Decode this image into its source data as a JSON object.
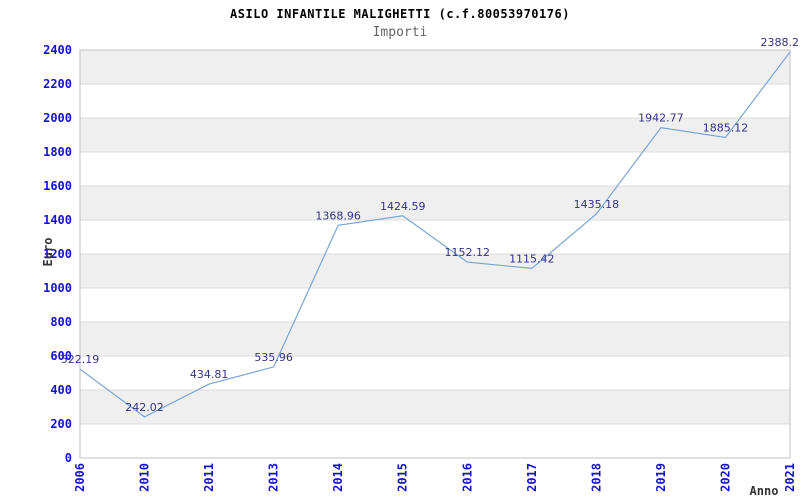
{
  "chart_data": {
    "type": "line",
    "title": "ASILO INFANTILE MALIGHETTI (c.f.80053970176)",
    "subtitle": "Importi",
    "xlabel": "Anno",
    "ylabel": "Euro",
    "categories": [
      "2006",
      "2010",
      "2011",
      "2013",
      "2014",
      "2015",
      "2016",
      "2017",
      "2018",
      "2019",
      "2020",
      "2021"
    ],
    "values": [
      522.19,
      242.02,
      434.81,
      535.96,
      1368.96,
      1424.59,
      1152.12,
      1115.42,
      1435.18,
      1942.77,
      1885.12,
      2388.2
    ],
    "point_labels": [
      "522.19",
      "242.02",
      "434.81",
      "535.96",
      "1368.96",
      "1424.59",
      "1152.12",
      "1115.42",
      "1435.18",
      "1942.77",
      "1885.12",
      "2388.2"
    ],
    "ylim": [
      0,
      2400
    ],
    "ytick_step": 200,
    "grid": "horizontal-bands",
    "legend": "none",
    "colors": {
      "line": "#78a5d8",
      "tick_label": "#1414cc",
      "data_label": "#333388",
      "band": "#efefef",
      "gridline": "#dddddd",
      "border": "#c0c0c0",
      "axis_title": "#333333",
      "title": "#000000",
      "subtitle": "#666666"
    }
  }
}
